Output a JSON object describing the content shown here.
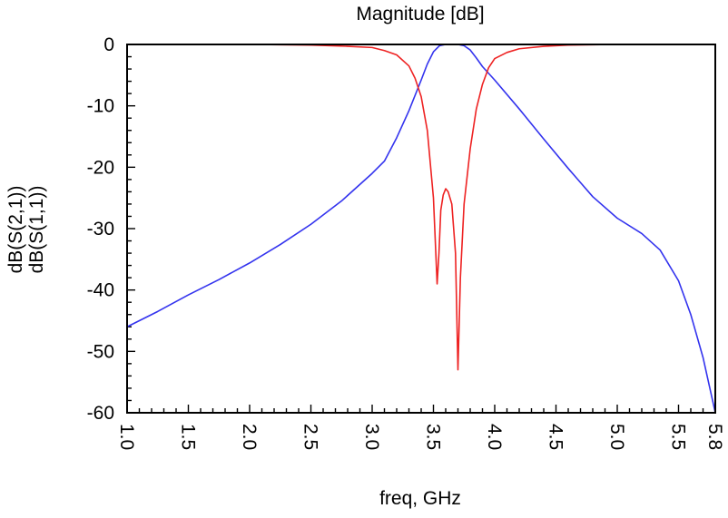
{
  "chart_data": {
    "type": "line",
    "title": "Magnitude [dB]",
    "xlabel": "freq, GHz",
    "ylabel_series": [
      "dB(S(2,1))",
      "dB(S(1,1))"
    ],
    "xlim": [
      1.0,
      5.8
    ],
    "ylim": [
      -60,
      0
    ],
    "x_ticks": [
      "1.0",
      "1.5",
      "2.0",
      "2.5",
      "3.0",
      "3.5",
      "4.0",
      "4.5",
      "5.0",
      "5.5",
      "5.8"
    ],
    "y_ticks": [
      "0",
      "-10",
      "-20",
      "-30",
      "-40",
      "-50",
      "-60"
    ],
    "series": [
      {
        "name": "dB(S(2,1))",
        "color": "#3333ee",
        "points": [
          [
            1.0,
            -46
          ],
          [
            1.25,
            -43.5
          ],
          [
            1.5,
            -40.8
          ],
          [
            1.75,
            -38.3
          ],
          [
            2.0,
            -35.6
          ],
          [
            2.25,
            -32.6
          ],
          [
            2.5,
            -29.3
          ],
          [
            2.75,
            -25.5
          ],
          [
            3.0,
            -21.0
          ],
          [
            3.1,
            -19.0
          ],
          [
            3.2,
            -15.2
          ],
          [
            3.3,
            -10.8
          ],
          [
            3.4,
            -5.8
          ],
          [
            3.45,
            -3.2
          ],
          [
            3.5,
            -1.2
          ],
          [
            3.55,
            -0.2
          ],
          [
            3.6,
            0.0
          ],
          [
            3.7,
            0.0
          ],
          [
            3.75,
            -0.2
          ],
          [
            3.8,
            -0.9
          ],
          [
            3.85,
            -2.2
          ],
          [
            3.9,
            -3.6
          ],
          [
            4.0,
            -5.8
          ],
          [
            4.2,
            -10.5
          ],
          [
            4.4,
            -15.4
          ],
          [
            4.6,
            -20.2
          ],
          [
            4.8,
            -24.8
          ],
          [
            5.0,
            -28.3
          ],
          [
            5.2,
            -30.8
          ],
          [
            5.35,
            -33.5
          ],
          [
            5.5,
            -38.5
          ],
          [
            5.6,
            -44.0
          ],
          [
            5.7,
            -51.0
          ],
          [
            5.8,
            -60.0
          ]
        ]
      },
      {
        "name": "dB(S(1,1))",
        "color": "#ee2222",
        "points": [
          [
            1.0,
            0.0
          ],
          [
            2.0,
            0.0
          ],
          [
            2.5,
            -0.1
          ],
          [
            2.8,
            -0.3
          ],
          [
            3.0,
            -0.5
          ],
          [
            3.1,
            -1.0
          ],
          [
            3.2,
            -1.7
          ],
          [
            3.3,
            -3.5
          ],
          [
            3.35,
            -5.5
          ],
          [
            3.4,
            -8.5
          ],
          [
            3.45,
            -14.0
          ],
          [
            3.5,
            -25.0
          ],
          [
            3.53,
            -39.0
          ],
          [
            3.545,
            -34.0
          ],
          [
            3.56,
            -27.0
          ],
          [
            3.58,
            -24.5
          ],
          [
            3.6,
            -23.5
          ],
          [
            3.62,
            -24.0
          ],
          [
            3.65,
            -26.0
          ],
          [
            3.68,
            -34.0
          ],
          [
            3.7,
            -53.0
          ],
          [
            3.72,
            -38.0
          ],
          [
            3.75,
            -26.0
          ],
          [
            3.8,
            -17.0
          ],
          [
            3.85,
            -10.5
          ],
          [
            3.9,
            -6.5
          ],
          [
            3.95,
            -3.8
          ],
          [
            4.0,
            -2.3
          ],
          [
            4.1,
            -1.3
          ],
          [
            4.2,
            -0.7
          ],
          [
            4.4,
            -0.3
          ],
          [
            4.6,
            -0.1
          ],
          [
            5.0,
            0.0
          ],
          [
            5.8,
            0.0
          ]
        ]
      }
    ]
  }
}
